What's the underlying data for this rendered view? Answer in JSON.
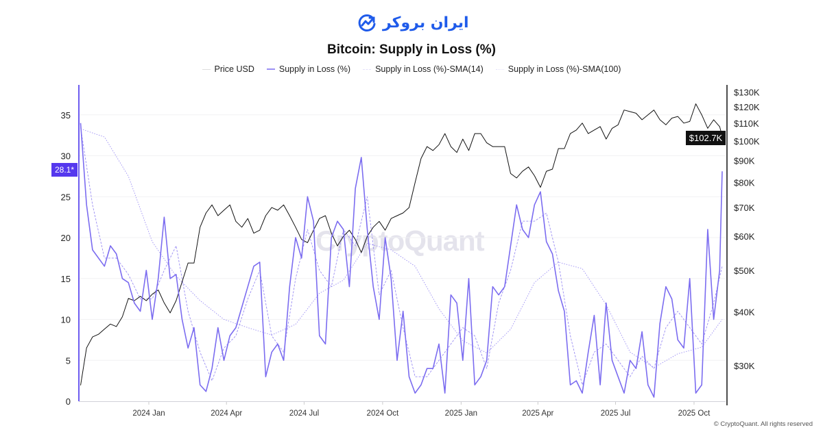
{
  "logo": {
    "text": "ایران بروکر",
    "color": "#1f5bea"
  },
  "title": "Bitcoin: Supply in Loss (%)",
  "legend": [
    {
      "label": "Price USD",
      "color": "#dddddd",
      "style": "solid"
    },
    {
      "label": "Supply in Loss (%)",
      "color": "#7b6cf0",
      "style": "solid"
    },
    {
      "label": "Supply in Loss (%)-SMA(14)",
      "color": "#e4e1fb",
      "style": "dashed"
    },
    {
      "label": "Supply in Loss (%)-SMA(100)",
      "color": "#e4e1fb",
      "style": "dotted"
    }
  ],
  "watermark": "CryptoQuant",
  "footer": "© CryptoQuant. All rights reserved",
  "badges": {
    "left": "28.1*",
    "right": "$102.7K"
  },
  "chart_data": {
    "type": "line",
    "title": "Bitcoin: Supply in Loss (%)",
    "xlim": [
      "2023-10-11",
      "2025-11-07"
    ],
    "x_ticks": [
      {
        "date": "2024-01-01",
        "label": "2024 Jan"
      },
      {
        "date": "2024-04-01",
        "label": "2024 Apr"
      },
      {
        "date": "2024-07-01",
        "label": "2024 Jul"
      },
      {
        "date": "2024-10-01",
        "label": "2024 Oct"
      },
      {
        "date": "2025-01-01",
        "label": "2025 Jan"
      },
      {
        "date": "2025-04-01",
        "label": "2025 Apr"
      },
      {
        "date": "2025-07-01",
        "label": "2025 Jul"
      },
      {
        "date": "2025-10-01",
        "label": "2025 Oct"
      }
    ],
    "y_left": {
      "ylim": [
        0,
        39
      ],
      "ticks": [
        0,
        5,
        10,
        15,
        20,
        25,
        30,
        35
      ],
      "grid": true
    },
    "y_right": {
      "scale": "log",
      "ylim": [
        24800,
        137000
      ],
      "ticks": [
        {
          "v": 30000,
          "label": "$30K"
        },
        {
          "v": 40000,
          "label": "$40K"
        },
        {
          "v": 50000,
          "label": "$50K"
        },
        {
          "v": 60000,
          "label": "$60K"
        },
        {
          "v": 70000,
          "label": "$70K"
        },
        {
          "v": 80000,
          "label": "$80K"
        },
        {
          "v": 90000,
          "label": "$90K"
        },
        {
          "v": 100000,
          "label": "$100K"
        },
        {
          "v": 110000,
          "label": "$110K"
        },
        {
          "v": 120000,
          "label": "$120K"
        },
        {
          "v": 130000,
          "label": "$130K"
        }
      ]
    },
    "dates": [
      "2023-10-13",
      "2023-10-20",
      "2023-10-27",
      "2023-11-03",
      "2023-11-10",
      "2023-11-17",
      "2023-11-24",
      "2023-12-01",
      "2023-12-08",
      "2023-12-15",
      "2023-12-22",
      "2023-12-29",
      "2024-01-05",
      "2024-01-12",
      "2024-01-19",
      "2024-01-26",
      "2024-02-02",
      "2024-02-09",
      "2024-02-16",
      "2024-02-23",
      "2024-03-01",
      "2024-03-08",
      "2024-03-15",
      "2024-03-22",
      "2024-03-29",
      "2024-04-05",
      "2024-04-12",
      "2024-04-19",
      "2024-04-26",
      "2024-05-03",
      "2024-05-10",
      "2024-05-17",
      "2024-05-24",
      "2024-05-31",
      "2024-06-07",
      "2024-06-14",
      "2024-06-21",
      "2024-06-28",
      "2024-07-05",
      "2024-07-12",
      "2024-07-19",
      "2024-07-26",
      "2024-08-02",
      "2024-08-09",
      "2024-08-16",
      "2024-08-23",
      "2024-08-30",
      "2024-09-06",
      "2024-09-13",
      "2024-09-20",
      "2024-09-27",
      "2024-10-04",
      "2024-10-11",
      "2024-10-18",
      "2024-10-25",
      "2024-11-01",
      "2024-11-08",
      "2024-11-15",
      "2024-11-22",
      "2024-11-29",
      "2024-12-06",
      "2024-12-13",
      "2024-12-20",
      "2024-12-27",
      "2025-01-03",
      "2025-01-10",
      "2025-01-17",
      "2025-01-24",
      "2025-01-31",
      "2025-02-07",
      "2025-02-14",
      "2025-02-21",
      "2025-02-28",
      "2025-03-07",
      "2025-03-14",
      "2025-03-21",
      "2025-03-28",
      "2025-04-04",
      "2025-04-11",
      "2025-04-18",
      "2025-04-25",
      "2025-05-02",
      "2025-05-09",
      "2025-05-16",
      "2025-05-23",
      "2025-05-30",
      "2025-06-06",
      "2025-06-13",
      "2025-06-20",
      "2025-06-27",
      "2025-07-04",
      "2025-07-11",
      "2025-07-18",
      "2025-07-25",
      "2025-08-01",
      "2025-08-08",
      "2025-08-15",
      "2025-08-22",
      "2025-08-29",
      "2025-09-05",
      "2025-09-12",
      "2025-09-19",
      "2025-09-26",
      "2025-10-03",
      "2025-10-10",
      "2025-10-17",
      "2025-10-24",
      "2025-10-31",
      "2025-11-03"
    ],
    "series": [
      {
        "name": "Price USD",
        "axis": "right",
        "color": "#111111",
        "values": [
          27000,
          33000,
          35000,
          35500,
          36500,
          37500,
          37000,
          39000,
          43000,
          42500,
          43500,
          42500,
          44000,
          45000,
          42000,
          39800,
          42500,
          47000,
          52000,
          52000,
          63000,
          68000,
          71000,
          67000,
          69000,
          71000,
          65000,
          63000,
          66000,
          61000,
          62000,
          67000,
          70000,
          69000,
          71000,
          67000,
          63000,
          59000,
          58000,
          62000,
          66000,
          67000,
          61000,
          57000,
          60000,
          62000,
          59000,
          55000,
          60000,
          63000,
          65000,
          62000,
          66000,
          67000,
          68000,
          70000,
          80000,
          91000,
          97000,
          95000,
          98000,
          104000,
          97000,
          94000,
          101000,
          95000,
          104000,
          104000,
          99000,
          97000,
          97000,
          97000,
          84000,
          82000,
          85000,
          87000,
          83000,
          78000,
          85000,
          86000,
          96000,
          96000,
          104000,
          106000,
          110000,
          104000,
          106000,
          108000,
          101000,
          107000,
          109000,
          118000,
          117000,
          116000,
          112000,
          115000,
          118000,
          112000,
          109000,
          113000,
          114000,
          110000,
          111000,
          122000,
          115000,
          107000,
          112000,
          108000,
          102700
        ]
      },
      {
        "name": "Supply in Loss (%)",
        "axis": "left",
        "color": "#7b6cf0",
        "values": [
          34,
          24,
          18.5,
          17.5,
          16.5,
          19,
          18,
          15,
          14.5,
          12,
          11,
          16,
          10,
          15,
          22.5,
          15,
          15.5,
          10,
          6.5,
          9,
          2,
          1.2,
          4,
          9,
          5,
          8,
          9,
          11.5,
          14,
          16.5,
          17,
          3,
          6,
          7,
          5,
          14,
          20,
          17.5,
          25,
          22,
          8,
          7,
          20,
          22,
          21,
          14,
          26,
          29.8,
          21,
          14,
          10,
          20,
          15,
          5,
          11,
          3,
          1,
          2,
          4,
          4,
          7,
          1,
          13,
          12,
          5,
          15,
          2,
          3,
          5,
          14,
          13,
          14,
          19,
          24,
          21,
          20,
          24,
          25.6,
          19.5,
          18,
          13.5,
          11,
          2,
          2.5,
          1,
          6,
          10.5,
          2,
          12,
          5,
          3,
          1,
          5,
          4,
          8.5,
          2,
          0.5,
          9.5,
          14,
          12.5,
          7.5,
          6.5,
          15,
          1,
          2,
          21,
          10,
          16,
          28.1
        ]
      },
      {
        "name": "Supply in Loss (%)-SMA(14)",
        "axis": "left",
        "color": "#8e80f2",
        "values": [
          33.5,
          null,
          24,
          null,
          17.5,
          null,
          17.5,
          null,
          15.5,
          null,
          12.5,
          null,
          12.5,
          null,
          16,
          null,
          19,
          null,
          11,
          null,
          6,
          null,
          2.5,
          null,
          6.5,
          null,
          8,
          null,
          12.5,
          null,
          16,
          null,
          8,
          null,
          6,
          null,
          15,
          null,
          21,
          null,
          16,
          null,
          14,
          null,
          21,
          null,
          19,
          null,
          25,
          null,
          13,
          null,
          16,
          null,
          9,
          null,
          3,
          null,
          3,
          null,
          5,
          null,
          7,
          null,
          9,
          null,
          8,
          null,
          4,
          null,
          12,
          null,
          16,
          null,
          22,
          null,
          22,
          null,
          23,
          null,
          17,
          null,
          8,
          null,
          2,
          null,
          6,
          null,
          7,
          null,
          5,
          null,
          3,
          null,
          5.5,
          null,
          4,
          null,
          9,
          null,
          11,
          null,
          9,
          null,
          7,
          null,
          12,
          null,
          16.5
        ]
      },
      {
        "name": "Supply in Loss (%)-SMA(100)",
        "axis": "left",
        "color": "#8e80f2",
        "values": [
          33.3,
          null,
          null,
          null,
          32.3,
          null,
          null,
          null,
          27.5,
          null,
          null,
          null,
          19.5,
          null,
          null,
          null,
          15.3,
          null,
          null,
          null,
          12.3,
          null,
          null,
          null,
          10,
          null,
          null,
          null,
          9,
          null,
          null,
          null,
          8.1,
          null,
          null,
          null,
          9.4,
          null,
          null,
          null,
          13.2,
          null,
          null,
          null,
          14.8,
          null,
          null,
          null,
          19.3,
          null,
          null,
          null,
          18.5,
          null,
          null,
          null,
          16.5,
          null,
          null,
          null,
          11.3,
          null,
          null,
          null,
          7.4,
          null,
          null,
          null,
          5.9,
          null,
          null,
          null,
          8.8,
          null,
          null,
          null,
          14.5,
          null,
          null,
          null,
          17,
          null,
          null,
          null,
          16.2,
          null,
          null,
          null,
          11.8,
          null,
          null,
          null,
          6,
          null,
          null,
          null,
          4.1,
          null,
          null,
          null,
          5.8,
          null,
          null,
          null,
          6.6,
          null,
          null,
          null,
          10
        ]
      }
    ]
  }
}
